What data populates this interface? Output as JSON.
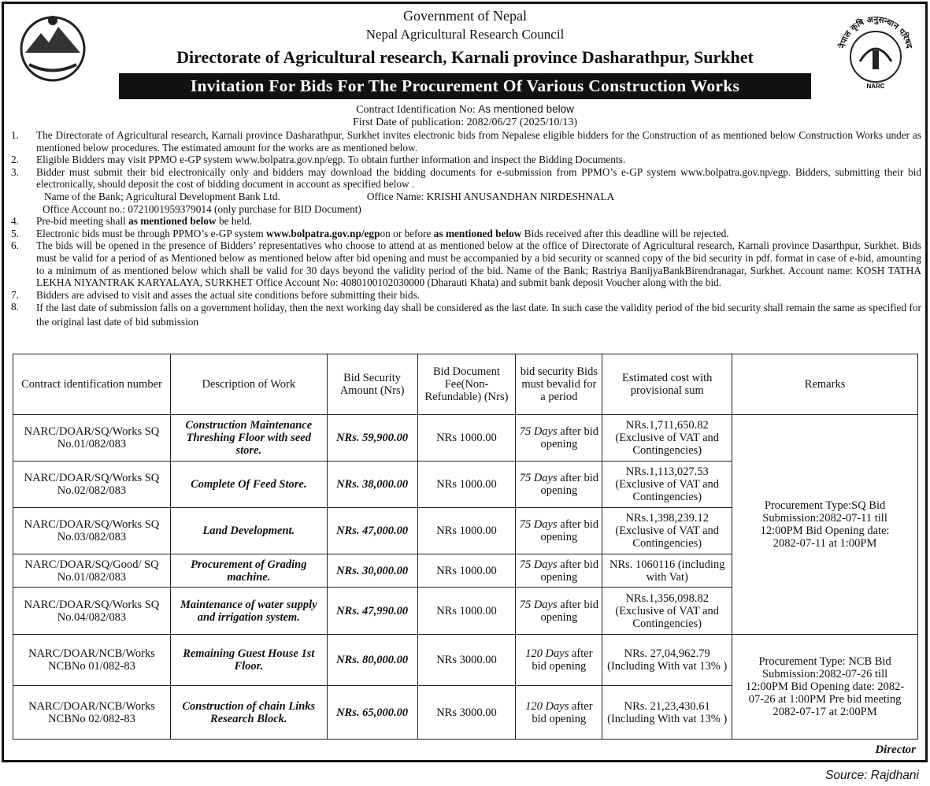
{
  "header": {
    "line1": "Government of Nepal",
    "line2": "Nepal Agricultural Research Council",
    "line3": "Directorate of Agricultural research, Karnali province Dasharathpur, Surkhet",
    "banner": "Invitation For Bids For The Procurement Of Various Construction Works",
    "contract_label": "Contract Identification No: ",
    "contract_value": "As mentioned below",
    "publication": "First Date of publication: 2082/06/27 (2025/10/13)",
    "right_logo_text": "नेपाल कृषि अनुसन्धान परिषद",
    "right_logo_abbr": "NARC"
  },
  "items": [
    {
      "n": "1.",
      "text": "The Directorate of Agricultural research, Karnali province Dasharathpur, Surkhet invites electronic bids from Nepalese eligible bidders for the Construction of as mentioned below Construction Works under as mentioned below procedures. The estimated amount for the works are as mentioned below."
    },
    {
      "n": "2.",
      "text": "Eligible Bidders may visit PPMO e-GP system www.bolpatra.gov.np/egp. To obtain further information and inspect  the Bidding Documents."
    },
    {
      "n": "3.",
      "text": "Bidder must submit their bid electronically only and bidders may download the bidding documents for e-submission from PPMO’s e-GP system www.bolpatra.gov.np/egp. Bidders, submitting their bid electronically,  should  deposit  the  cost  of  bidding  document  in account  as  specified  below ."
    },
    {
      "n": "4.",
      "pre": "Pre-bid meeting shall ",
      "bold": "as mentioned below",
      "post": " be held."
    },
    {
      "n": "5.",
      "pre": "Electronic bids must be through PPMO’s e-GP system ",
      "bold": "www.bolpatra.gov.np/egp",
      "mid": "on or before ",
      "bold2": "as mentioned below",
      "post": " Bids received after this deadline will be rejected."
    },
    {
      "n": "6.",
      "text": "The bids will be opened in the presence of Bidders’ representatives who choose to attend at as mentioned below at the office of Directorate of Agricultural research, Karnali province Dasarthpur, Surkhet. Bids must be valid for a period of as Mentioned   below as mentioned below after bid opening and must be accompanied by  a bid security or scanned copy of the bid security in pdf. format in case of e-bid, amounting to a minimum of as mentioned below which shall be valid for 30 days beyond the validity period of the bid. Name of the Bank; Rastriya BanijyaBankBirendranagar, Surkhet. Account name: KOSH TATHA LEKHA NIYANTRAK KARYALAYA, SURKHET Office Account No: 4080100102030000 (Dharauti Khata) and submit bank deposit Voucher along with the bid."
    },
    {
      "n": "7.",
      "text": "Bidders are advised to visit and asses the actual site conditions before submitting their bids."
    },
    {
      "n": "8.",
      "text": "If the last date of submission falls on a government holiday, then the next working day shall be considered as the last date. In such case the validity period of the bid security shall remain the same as specified for the original last date of bid submission"
    }
  ],
  "bank": {
    "bank_name": "Name of the Bank;  Agricultural Development Bank Ltd.",
    "office_name": "Office Name:  KRISHI ANUSANDHAN NIRDESHNALA",
    "account": "Office Account no.: 0721001959379014 (only purchase for BID Document)"
  },
  "table": {
    "headers": [
      "Contract   identification number",
      "Description of Work",
      "Bid Security Amount (Nrs)",
      "Bid Document Fee(Non-Refundable) (Nrs)",
      "bid security Bids must  bevalid for a period",
      "Estimated cost with provisional sum",
      "Remarks"
    ],
    "rows": [
      {
        "id": "NARC/DOAR/SQ/Works SQ No.01/082/083",
        "desc": "Construction Maintenance Threshing Floor with seed store.",
        "security": "NRs. 59,900.00",
        "fee": "NRs 1000.00",
        "days": "75 Days",
        "after": " after bid opening",
        "cost": "NRs.1,711,650.82 (Exclusive of VAT and Contingencies)"
      },
      {
        "id": "NARC/DOAR/SQ/Works SQ No.02/082/083",
        "desc": "Complete Of Feed Store.",
        "security": "NRs. 38,000.00",
        "fee": "NRs 1000.00",
        "days": "75 Days",
        "after": " after bid opening",
        "cost": "NRs.1,113,027.53 (Exclusive of VAT and Contingencies)"
      },
      {
        "id": "NARC/DOAR/SQ/Works SQ No.03/082/083",
        "desc": "Land Development.",
        "security": "NRs. 47,000.00",
        "fee": "NRs 1000.00",
        "days": "75 Days",
        "after": " after bid opening",
        "cost": "NRs.1,398,239.12 (Exclusive of VAT and Contingencies)"
      },
      {
        "id": "NARC/DOAR/SQ/Good/ SQ No.01/082/083",
        "desc": "Procurement of Grading machine.",
        "security": "NRs. 30,000.00",
        "fee": "NRs 1000.00",
        "days": "75 Days",
        "after": " after bid opening",
        "cost": "NRs. 1060116 (including with Vat)"
      },
      {
        "id": "NARC/DOAR/SQ/Works SQ No.04/082/083",
        "desc": "Maintenance of water supply and irrigation system.",
        "security": "NRs. 47,990.00",
        "fee": "NRs 1000.00",
        "days": "75 Days",
        "after": " after bid opening",
        "cost": "NRs.1,356,098.82 (Exclusive of VAT and Contingencies)"
      },
      {
        "id": "NARC/DOAR/NCB/Works NCBNo 01/082-83",
        "desc": "Remaining Guest House 1st Floor.",
        "security": "NRs. 80,000.00",
        "fee": "NRs 3000.00",
        "days": "120 Days",
        "after": " after bid opening",
        "cost": "NRs. 27,04,962.79 (Including  With vat 13% )"
      },
      {
        "id": "NARC/DOAR/NCB/Works NCBNo 02/082-83",
        "desc": "Construction of chain Links Research Block.",
        "security": "NRs. 65,000.00",
        "fee": "NRs 3000.00",
        "days": "120 Days",
        "after": " after bid opening",
        "cost": "NRs. 21,23,430.61 (Including  With vat 13% )"
      }
    ],
    "remarks_sq": "Procurement Type:SQ Bid Submission:2082-07-11 till 12:00PM Bid Opening date: 2082-07-11  at 1:00PM",
    "remarks_ncb": "Procurement Type: NCB Bid Submission:2082-07-26 till 12:00PM Bid Opening date: 2082-07-26 at  1:00PM Pre bid meeting 2082-07-17 at 2:00PM"
  },
  "footer": {
    "signatory": "Director",
    "source": "Source: Rajdhani"
  }
}
